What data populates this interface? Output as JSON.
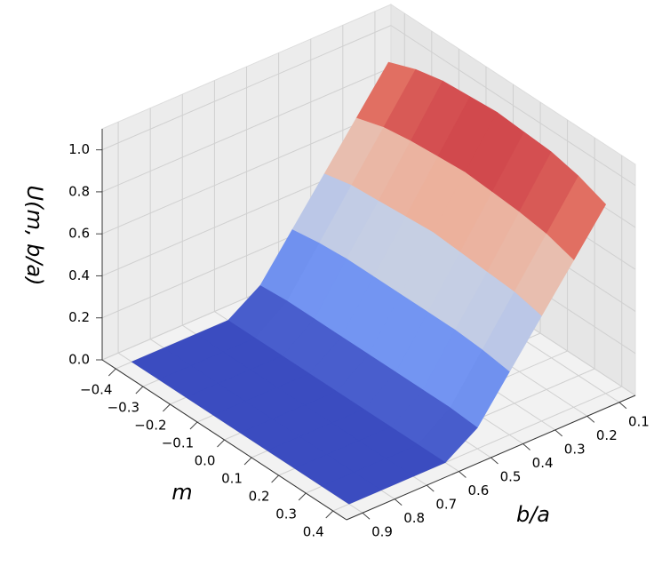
{
  "chart_data": {
    "type": "surface",
    "x_label": "m",
    "y_label": "b/a",
    "z_label": "U(m, b/a)",
    "x": [
      -0.4,
      -0.3,
      -0.2,
      -0.1,
      0,
      0.1,
      0.2,
      0.3,
      0.4
    ],
    "y": [
      0.1,
      0.2,
      0.3,
      0.4,
      0.5,
      0.6,
      0.7,
      0.8,
      0.9
    ],
    "z": [
      [
        0.9,
        0.7,
        0.5,
        0.3,
        0.1,
        0,
        0,
        0,
        0
      ],
      [
        0.95,
        0.74,
        0.53,
        0.32,
        0.11,
        0,
        0,
        0,
        0
      ],
      [
        0.98,
        0.76,
        0.54,
        0.33,
        0.11,
        0,
        0,
        0,
        0
      ],
      [
        0.99,
        0.77,
        0.55,
        0.33,
        0.11,
        0,
        0,
        0,
        0
      ],
      [
        1.0,
        0.78,
        0.56,
        0.33,
        0.11,
        0,
        0,
        0,
        0
      ],
      [
        0.99,
        0.77,
        0.55,
        0.33,
        0.11,
        0,
        0,
        0,
        0
      ],
      [
        0.98,
        0.76,
        0.54,
        0.33,
        0.11,
        0,
        0,
        0,
        0
      ],
      [
        0.95,
        0.74,
        0.53,
        0.32,
        0.11,
        0,
        0,
        0,
        0
      ],
      [
        0.9,
        0.7,
        0.5,
        0.3,
        0.1,
        0,
        0,
        0,
        0
      ]
    ],
    "xlim": [
      -0.45,
      0.45
    ],
    "ylim": [
      0.05,
      0.95
    ],
    "zlim": [
      0,
      1.1
    ],
    "xticks": [
      {
        "value": -0.4,
        "label": "−0.4"
      },
      {
        "value": -0.3,
        "label": "−0.3"
      },
      {
        "value": -0.2,
        "label": "−0.2"
      },
      {
        "value": -0.1,
        "label": "−0.1"
      },
      {
        "value": 0,
        "label": "0.0"
      },
      0.1,
      0.2,
      0.3,
      0.4
    ],
    "yticks": [
      0.1,
      0.2,
      0.3,
      0.4,
      0.5,
      0.6,
      0.7,
      0.8,
      0.9
    ],
    "zticks": [
      {
        "value": 0,
        "label": "0.0"
      },
      0.2,
      0.4,
      0.6,
      0.8,
      {
        "value": 1,
        "label": "1.0"
      }
    ],
    "colormap": [
      "#3b4cc0",
      "#7b9ff9",
      "#dddddd",
      "#f49a7b",
      "#b40426"
    ],
    "grid": true
  }
}
